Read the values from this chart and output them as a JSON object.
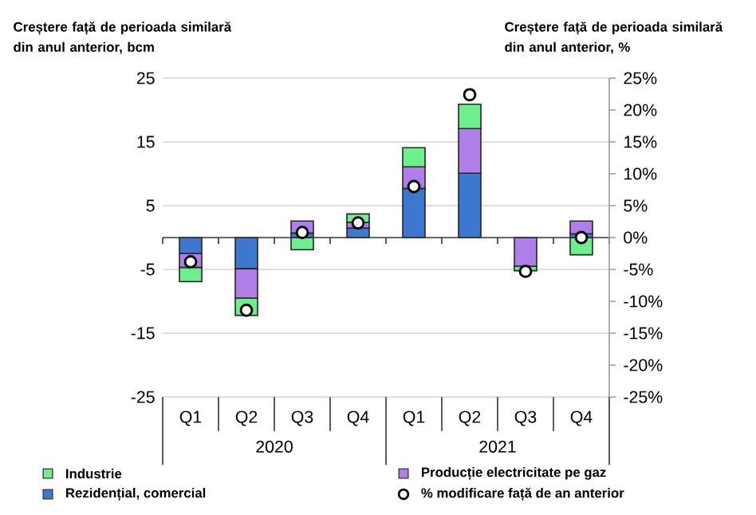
{
  "chart_data": {
    "type": "bar",
    "stacked": true,
    "categories": [
      "Q1",
      "Q2",
      "Q3",
      "Q4",
      "Q1",
      "Q2",
      "Q3",
      "Q4"
    ],
    "series": [
      {
        "name": "Rezidențial, comercial",
        "color": "#3c78d0",
        "values": [
          -2.5,
          -4.9,
          0.7,
          1.5,
          7.7,
          10.1,
          null,
          0.6
        ]
      },
      {
        "name": "Producție electricitate pe gaz",
        "color": "#b07ee8",
        "values": [
          -2.2,
          -4.6,
          1.9,
          0.9,
          3.4,
          7.0,
          -4.5,
          2.0
        ]
      },
      {
        "name": "Industrie",
        "color": "#6cf08c",
        "values": [
          -2.2,
          -2.7,
          -1.9,
          1.3,
          3.0,
          3.8,
          -0.7,
          -2.7
        ]
      },
      {
        "name": "% modificare față de an anterior",
        "type": "scatter",
        "axis": "y2",
        "color": "#ffffff",
        "values": [
          -3.8,
          -11.4,
          0.8,
          2.3,
          8.0,
          22.4,
          -5.3,
          0
        ]
      }
    ],
    "ylabel": "Creștere față de perioada similară din anul anterior, bcm",
    "y2label": "Creștere față de perioada similară din anul anterior, %",
    "ylim": [
      -25,
      25
    ],
    "yticks": [
      -25,
      -15,
      -5,
      5,
      15,
      25
    ],
    "y2lim": [
      -25,
      25
    ],
    "y2ticks": [
      {
        "value": -25,
        "label": "-25%"
      },
      {
        "value": -20,
        "label": "-20%"
      },
      {
        "value": -15,
        "label": "-15%"
      },
      {
        "value": -10,
        "label": "-10%"
      },
      {
        "value": -5,
        "label": "-5%"
      },
      {
        "value": 0,
        "label": "0%"
      },
      {
        "value": 5,
        "label": "5%"
      },
      {
        "value": 10,
        "label": "10%"
      },
      {
        "value": 15,
        "label": "15%"
      },
      {
        "value": 20,
        "label": "20%"
      },
      {
        "value": 25,
        "label": "25%"
      }
    ],
    "annotations": [
      "2020",
      "2021"
    ],
    "grid": "y",
    "legend": "bottom",
    "marker": "circle"
  }
}
